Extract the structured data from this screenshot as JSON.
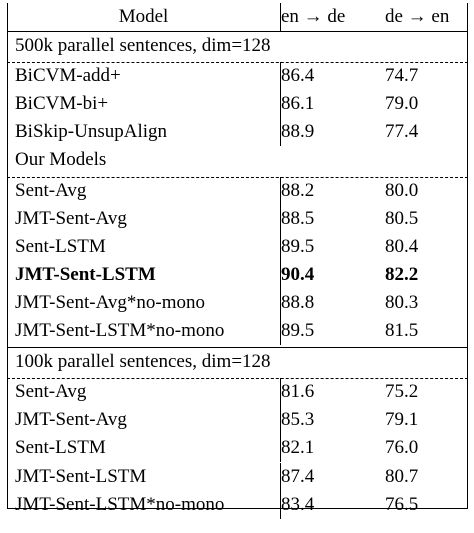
{
  "header": {
    "model": "Model",
    "en_de": "en → de",
    "de_en": "de → en"
  },
  "sections": [
    {
      "title": "500k parallel sentences, dim=128",
      "rows": [
        {
          "model": "BiCVM-add+",
          "en_de": "86.4",
          "de_en": "74.7"
        },
        {
          "model": "BiCVM-bi+",
          "en_de": "86.1",
          "de_en": "79.0"
        },
        {
          "model": "BiSkip-UnsupAlign",
          "en_de": "88.9",
          "de_en": "77.4"
        }
      ]
    },
    {
      "title": "Our Models",
      "rows": [
        {
          "model": "Sent-Avg",
          "en_de": "88.2",
          "de_en": "80.0"
        },
        {
          "model": "JMT-Sent-Avg",
          "en_de": "88.5",
          "de_en": "80.5"
        },
        {
          "model": "Sent-LSTM",
          "en_de": "89.5",
          "de_en": "80.4"
        },
        {
          "model": "JMT-Sent-LSTM",
          "en_de": "90.4",
          "de_en": "82.2",
          "bold": true
        },
        {
          "model": "JMT-Sent-Avg*no-mono",
          "en_de": "88.8",
          "de_en": "80.3"
        },
        {
          "model": "JMT-Sent-LSTM*no-mono",
          "en_de": "89.5",
          "de_en": "81.5"
        }
      ]
    },
    {
      "title": "100k parallel sentences, dim=128",
      "rows": [
        {
          "model": "Sent-Avg",
          "en_de": "81.6",
          "de_en": "75.2"
        },
        {
          "model": "JMT-Sent-Avg",
          "en_de": "85.3",
          "de_en": "79.1"
        },
        {
          "model": "Sent-LSTM",
          "en_de": "82.1",
          "de_en": "76.0"
        },
        {
          "model": "JMT-Sent-LSTM",
          "en_de": "87.4",
          "de_en": "80.7"
        },
        {
          "model": "JMT-Sent-LSTM*no-mono",
          "en_de": "83.4",
          "de_en": "76.5"
        }
      ]
    }
  ]
}
